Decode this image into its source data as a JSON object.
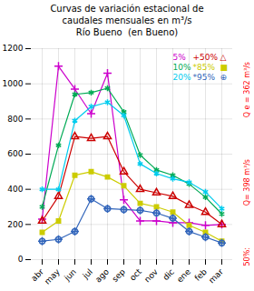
{
  "chart_data": {
    "type": "line",
    "title": "Curvas de variación estacional de\ncaudales mensuales en m³/s\nRío Bueno  (en Bueno)",
    "categories": [
      "abr",
      "may",
      "jun",
      "jul",
      "ago",
      "sep",
      "oct",
      "nov",
      "dic",
      "ene",
      "feb",
      "mar"
    ],
    "series": [
      {
        "name": "5%",
        "color": "#cc00cc",
        "marker": "plus",
        "values": [
          230,
          1100,
          970,
          830,
          1060,
          340,
          220,
          220,
          210,
          210,
          195,
          200
        ]
      },
      {
        "name": "50%",
        "color": "#cc0000",
        "marker": "triangle",
        "values": [
          220,
          360,
          700,
          690,
          700,
          500,
          400,
          380,
          360,
          310,
          270,
          200
        ]
      },
      {
        "name": "10%",
        "color": "#00aa55",
        "marker": "asterisk",
        "values": [
          300,
          650,
          940,
          950,
          975,
          840,
          595,
          510,
          480,
          430,
          355,
          260
        ]
      },
      {
        "name": "85%",
        "color": "#cccc00",
        "marker": "square",
        "values": [
          155,
          220,
          480,
          500,
          470,
          420,
          320,
          300,
          270,
          195,
          155,
          105
        ]
      },
      {
        "name": "20%",
        "color": "#00ccee",
        "marker": "asterisk",
        "values": [
          400,
          400,
          790,
          870,
          895,
          820,
          545,
          490,
          460,
          440,
          385,
          290
        ]
      },
      {
        "name": "95%",
        "color": "#3366bb",
        "marker": "oplus",
        "values": [
          105,
          115,
          160,
          345,
          290,
          285,
          280,
          265,
          235,
          160,
          128,
          95
        ]
      }
    ],
    "ylim": [
      0,
      1200
    ],
    "yticks": [
      0,
      200,
      400,
      600,
      800,
      1000,
      1200
    ],
    "grid": true,
    "annotations": [
      {
        "text": "5%",
        "color": "#cc00cc"
      },
      {
        "text": "+50%",
        "color": "#cc0000"
      },
      {
        "text": "△",
        "color": "#cc0000"
      },
      {
        "text": "10%",
        "color": "#00aa55"
      },
      {
        "text": "*85%",
        "color": "#cccc00"
      },
      {
        "text": "■",
        "color": "#cccc00"
      },
      {
        "text": "20%",
        "color": "#00ccee"
      },
      {
        "text": "*95%",
        "color": "#3366bb"
      },
      {
        "text": "⊕",
        "color": "#3366bb"
      },
      {
        "text": "Q e = 362 m³/s",
        "color": "red"
      },
      {
        "text": "Q= 398 m³/s",
        "color": "red"
      },
      {
        "text": "50%:",
        "color": "red"
      }
    ]
  }
}
